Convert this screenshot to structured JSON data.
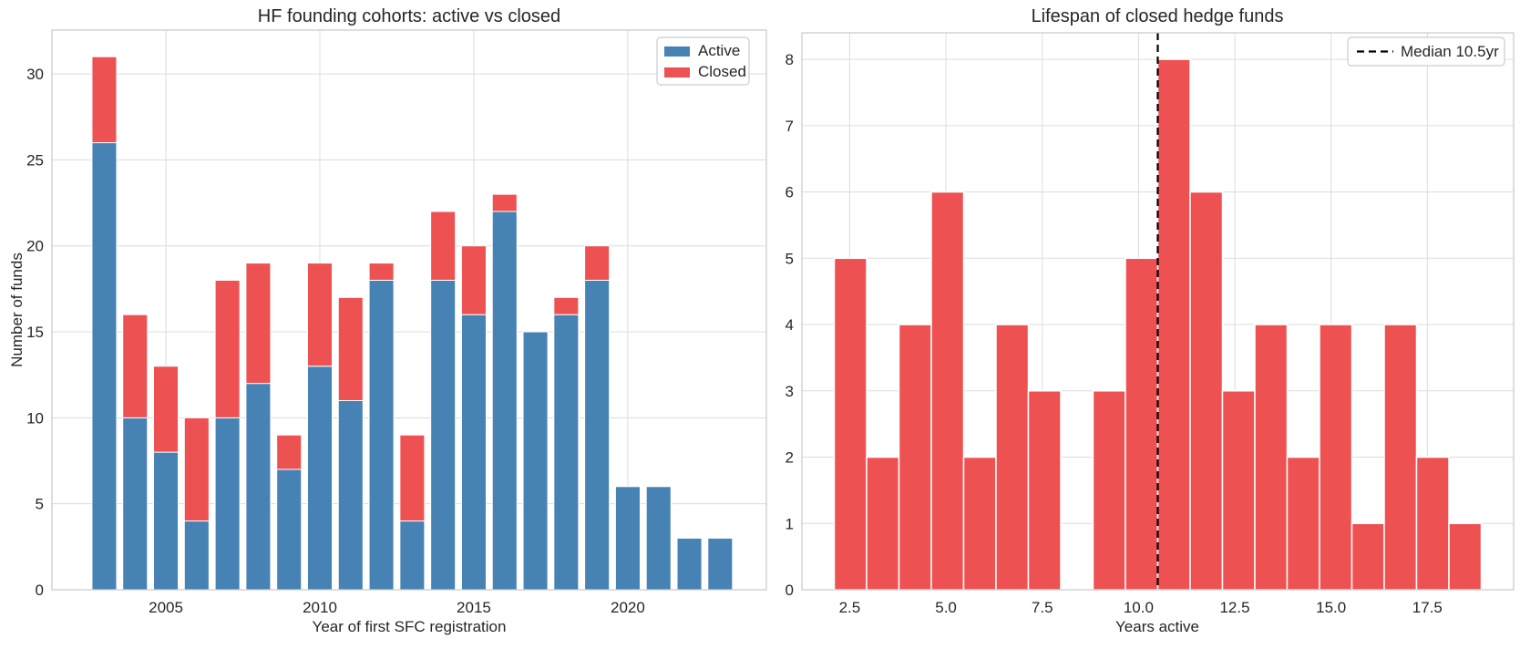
{
  "figure": {
    "background": "#ffffff",
    "text_color": "#262626",
    "grid_color": "#dcdcdc",
    "spine_color": "#cccccc"
  },
  "chart_data": [
    {
      "type": "bar",
      "stacked": true,
      "title": "HF founding cohorts: active vs closed",
      "xlabel": "Year of first SFC registration",
      "ylabel": "Number of funds",
      "categories": [
        2003,
        2004,
        2005,
        2006,
        2007,
        2008,
        2009,
        2010,
        2011,
        2012,
        2013,
        2014,
        2015,
        2016,
        2017,
        2018,
        2019,
        2020,
        2021,
        2022,
        2023
      ],
      "series": [
        {
          "name": "Active",
          "color": "#4682B4",
          "values": [
            26,
            10,
            8,
            4,
            10,
            12,
            7,
            13,
            11,
            18,
            4,
            18,
            16,
            22,
            15,
            16,
            18,
            6,
            6,
            3,
            3
          ]
        },
        {
          "name": "Closed",
          "color": "#EE5151",
          "values": [
            5,
            6,
            5,
            6,
            8,
            7,
            2,
            6,
            6,
            1,
            5,
            4,
            4,
            1,
            0,
            1,
            2,
            0,
            0,
            0,
            0
          ]
        }
      ],
      "bar_width": 0.8,
      "xlim": [
        2001.3,
        2024.5
      ],
      "ylim": [
        0,
        32.55
      ],
      "xticks": {
        "values": [
          2005,
          2010,
          2015,
          2020
        ],
        "labels": [
          "2005",
          "2010",
          "2015",
          "2020"
        ]
      },
      "yticks": {
        "values": [
          0,
          5,
          10,
          15,
          20,
          25,
          30
        ],
        "labels": [
          "0",
          "5",
          "10",
          "15",
          "20",
          "25",
          "30"
        ]
      },
      "grid": true,
      "legend_position": "upper right"
    },
    {
      "type": "histogram",
      "title": "Lifespan of closed hedge funds",
      "xlabel": "Years active",
      "ylabel": "",
      "color": "#EE5151",
      "bin_start": 2.1,
      "bin_width": 0.84,
      "counts": [
        5,
        2,
        4,
        6,
        2,
        4,
        3,
        0,
        3,
        5,
        8,
        6,
        3,
        4,
        2,
        4,
        1,
        4,
        2,
        1
      ],
      "median_line": {
        "value": 10.5,
        "label": "Median 10.5yr",
        "color": "#000000",
        "style": "dashed"
      },
      "xlim": [
        1.26,
        19.74
      ],
      "ylim": [
        0,
        8.4
      ],
      "xticks": {
        "values": [
          2.5,
          5.0,
          7.5,
          10.0,
          12.5,
          15.0,
          17.5
        ],
        "labels": [
          "2.5",
          "5.0",
          "7.5",
          "10.0",
          "12.5",
          "15.0",
          "17.5"
        ]
      },
      "yticks": {
        "values": [
          0,
          1,
          2,
          3,
          4,
          5,
          6,
          7,
          8
        ],
        "labels": [
          "0",
          "1",
          "2",
          "3",
          "4",
          "5",
          "6",
          "7",
          "8"
        ]
      },
      "grid": true,
      "legend_position": "upper right"
    }
  ]
}
